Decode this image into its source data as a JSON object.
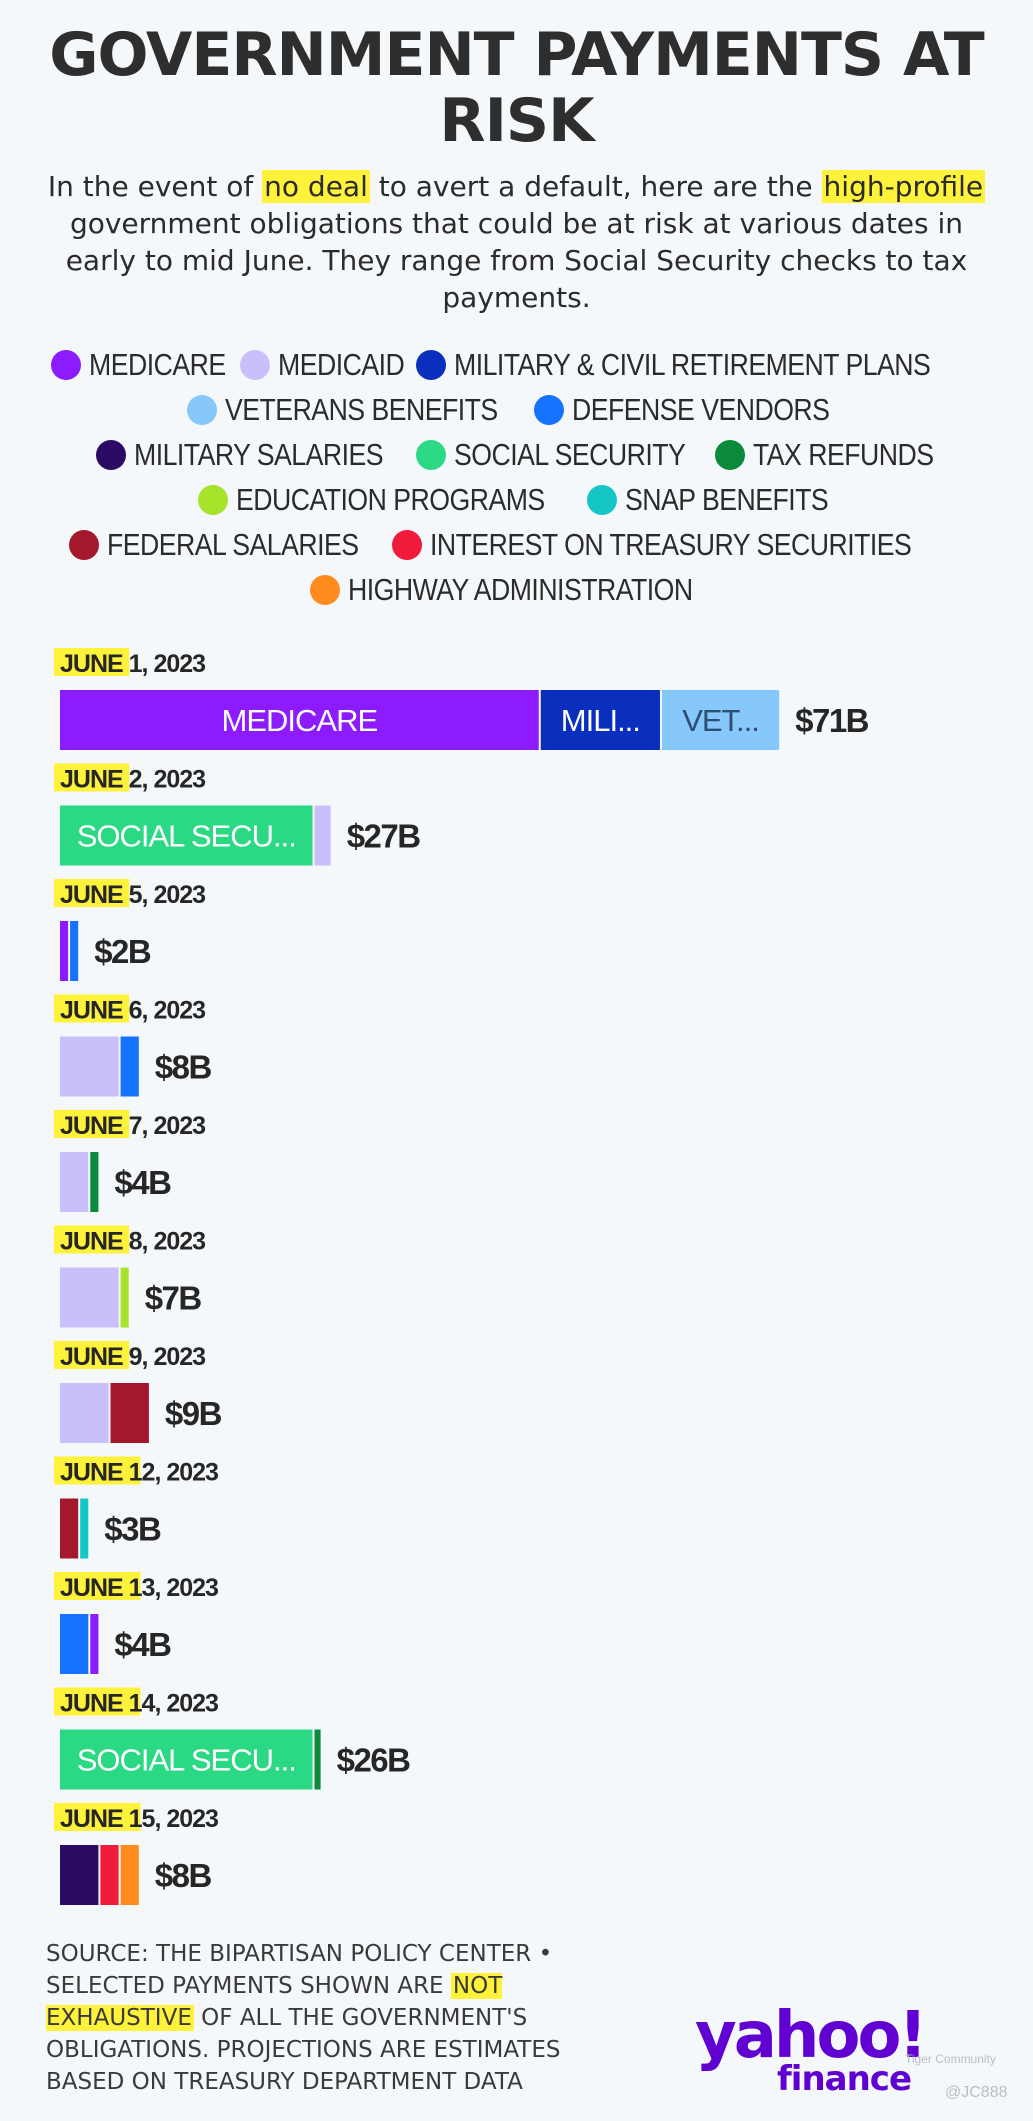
{
  "title": "GOVERNMENT PAYMENTS AT RISK",
  "subtitle": {
    "p1": "In the event of ",
    "h1": "no deal",
    "p2": " to avert a default, here are the ",
    "h2": "high-profile",
    "p3": " government obligations that could be at risk at various dates in early to mid June. They range from Social Security checks to tax payments."
  },
  "legend": [
    {
      "key": "medicare",
      "label": "MEDICARE",
      "color": "#8c1cff"
    },
    {
      "key": "medicaid",
      "label": "MEDICAID",
      "color": "#c9c0fb"
    },
    {
      "key": "military_retirement",
      "label": "MILITARY & CIVIL RETIREMENT PLANS",
      "color": "#0a2fbd"
    },
    {
      "key": "veterans",
      "label": "VETERANS BENEFITS",
      "color": "#86c8fb"
    },
    {
      "key": "defense_vendors",
      "label": "DEFENSE VENDORS",
      "color": "#1673ff"
    },
    {
      "key": "military_salaries",
      "label": "MILITARY SALARIES",
      "color": "#2b0a63"
    },
    {
      "key": "social_security",
      "label": "SOCIAL SECURITY",
      "color": "#2bd985"
    },
    {
      "key": "tax_refunds",
      "label": "TAX REFUNDS",
      "color": "#0b8a3c"
    },
    {
      "key": "education",
      "label": "EDUCATION PROGRAMS",
      "color": "#a6e32a"
    },
    {
      "key": "snap",
      "label": "SNAP BENEFITS",
      "color": "#15c6c6"
    },
    {
      "key": "federal_salaries",
      "label": "FEDERAL SALARIES",
      "color": "#a3182b"
    },
    {
      "key": "interest",
      "label": "INTEREST ON TREASURY SECURITIES",
      "color": "#f01b3a"
    },
    {
      "key": "highway",
      "label": "HIGHWAY ADMINISTRATION",
      "color": "#ff8b1f"
    }
  ],
  "chart_data": {
    "type": "bar",
    "orientation": "horizontal",
    "stacked": true,
    "units": "billions USD",
    "rows": [
      {
        "date": "JUNE 1",
        "year": ", 2023",
        "total": "$71B",
        "segments": [
          {
            "key": "medicare",
            "value": 47.6,
            "label": "MEDICARE"
          },
          {
            "key": "military_retirement",
            "value": 12.0,
            "label": "MILI..."
          },
          {
            "key": "veterans",
            "value": 11.8,
            "label": "VET..."
          }
        ]
      },
      {
        "date": "JUNE 2",
        "year": ", 2023",
        "total": "$27B",
        "segments": [
          {
            "key": "social_security",
            "value": 25.2,
            "label": "SOCIAL SECU..."
          },
          {
            "key": "medicaid",
            "value": 1.8
          }
        ]
      },
      {
        "date": "JUNE 5",
        "year": ", 2023",
        "total": "$2B",
        "segments": [
          {
            "key": "medicare",
            "value": 1.0
          },
          {
            "key": "defense_vendors",
            "value": 1.0
          }
        ]
      },
      {
        "date": "JUNE 6",
        "year": ", 2023",
        "total": "$8B",
        "segments": [
          {
            "key": "medicaid",
            "value": 6.0
          },
          {
            "key": "defense_vendors",
            "value": 2.0
          }
        ]
      },
      {
        "date": "JUNE 7",
        "year": ", 2023",
        "total": "$4B",
        "segments": [
          {
            "key": "medicaid",
            "value": 3.0
          },
          {
            "key": "tax_refunds",
            "value": 1.0
          }
        ]
      },
      {
        "date": "JUNE 8",
        "year": ", 2023",
        "total": "$7B",
        "segments": [
          {
            "key": "medicaid",
            "value": 6.0
          },
          {
            "key": "education",
            "value": 1.0
          }
        ]
      },
      {
        "date": "JUNE 9",
        "year": ", 2023",
        "total": "$9B",
        "segments": [
          {
            "key": "medicaid",
            "value": 5.0
          },
          {
            "key": "federal_salaries",
            "value": 4.0
          }
        ]
      },
      {
        "date": "JUNE 12",
        "year": ", 2023",
        "total": "$3B",
        "segments": [
          {
            "key": "federal_salaries",
            "value": 2.0
          },
          {
            "key": "snap",
            "value": 1.0
          }
        ]
      },
      {
        "date": "JUNE 13",
        "year": ", 2023",
        "total": "$4B",
        "segments": [
          {
            "key": "defense_vendors",
            "value": 3.0
          },
          {
            "key": "medicare",
            "value": 1.0
          }
        ]
      },
      {
        "date": "JUNE 14",
        "year": ", 2023",
        "total": "$26B",
        "segments": [
          {
            "key": "social_security",
            "value": 25.2,
            "label": "SOCIAL SECU..."
          },
          {
            "key": "tax_refunds",
            "value": 0.8
          }
        ]
      },
      {
        "date": "JUNE 15",
        "year": ", 2023",
        "total": "$8B",
        "segments": [
          {
            "key": "military_salaries",
            "value": 4.0
          },
          {
            "key": "interest",
            "value": 2.0
          },
          {
            "key": "highway",
            "value": 2.0
          }
        ]
      }
    ]
  },
  "source": {
    "p1": "SOURCE: THE BIPARTISAN POLICY CENTER • SELECTED PAYMENTS SHOWN ARE ",
    "h1": "NOT EXHAUSTIVE",
    "p2": " OF ALL THE GOVERNMENT'S OBLIGATIONS. PROJECTIONS ARE ESTIMATES BASED ON TREASURY DEPARTMENT DATA"
  },
  "logo": {
    "yahoo": "yahoo!",
    "finance": "finance"
  },
  "watermark": {
    "community": "Tiger Community",
    "handle": "@JC888"
  },
  "colors": {
    "highlight": "#fff23a",
    "text": "#2b2b2b",
    "background": "#f5f8fb"
  }
}
